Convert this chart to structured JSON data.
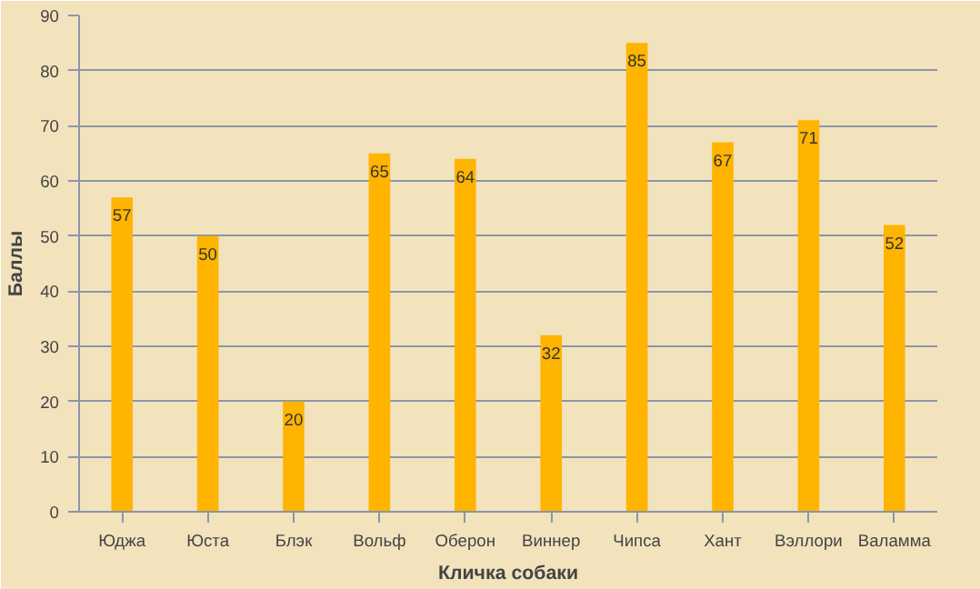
{
  "chart_data": {
    "type": "bar",
    "xlabel": "Кличка собаки",
    "ylabel": "Баллы",
    "categories": [
      "Юджа",
      "Юста",
      "Блэк",
      "Вольф",
      "Оберон",
      "Виннер",
      "Чипса",
      "Хант",
      "Вэллори",
      "Валамма"
    ],
    "values": [
      57,
      50,
      20,
      65,
      64,
      32,
      85,
      67,
      71,
      52
    ],
    "color": "#ffb400",
    "ylim": [
      0,
      90
    ],
    "yticks": [
      0,
      10,
      20,
      30,
      40,
      50,
      60,
      70,
      80,
      90
    ],
    "grid": "y",
    "data_labels": true
  }
}
